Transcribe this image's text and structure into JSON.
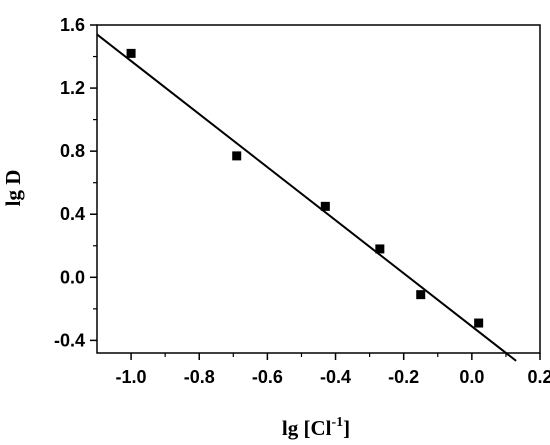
{
  "chart_data": {
    "type": "scatter",
    "title": "",
    "xlabel": {
      "main": "lg [Cl",
      "sup": "-1",
      "end": "]"
    },
    "ylabel": "lg D",
    "xlim": [
      -1.1,
      0.2
    ],
    "ylim": [
      -0.48,
      1.6
    ],
    "x_ticks": [
      -1.0,
      -0.8,
      -0.6,
      -0.4,
      -0.2,
      0.0,
      0.2
    ],
    "x_tick_labels": [
      "-1.0",
      "-0.8",
      "-0.6",
      "-0.4",
      "-0.2",
      "0.0",
      "0.2"
    ],
    "y_ticks": [
      -0.4,
      0.0,
      0.4,
      0.8,
      1.2,
      1.6
    ],
    "y_tick_labels": [
      "-0.4",
      "0.0",
      "0.4",
      "0.8",
      "1.2",
      "1.6"
    ],
    "grid": false,
    "legend": "none",
    "marker_color": "#000000",
    "line_color": "#000000",
    "series": [
      {
        "kind": "points",
        "marker": "square",
        "x": [
          -1.0,
          -0.69,
          -0.43,
          -0.27,
          -0.15,
          0.02
        ],
        "y": [
          1.42,
          0.77,
          0.45,
          0.18,
          -0.11,
          -0.29
        ]
      },
      {
        "kind": "fit-line",
        "x": [
          -1.1,
          0.13
        ],
        "y": [
          1.54,
          -0.53
        ]
      }
    ]
  }
}
